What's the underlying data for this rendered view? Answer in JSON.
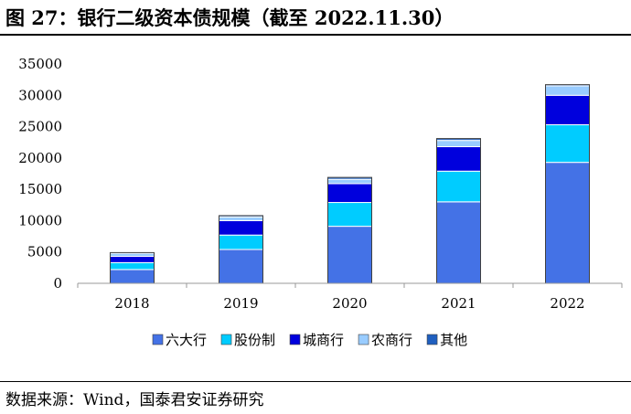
{
  "header": {
    "title": "图 27：银行二级资本债规模（截至 2022.11.30）"
  },
  "footer": {
    "source": "数据来源：Wind，国泰君安证券研究"
  },
  "chart_data": {
    "type": "bar",
    "stacked": true,
    "categories": [
      "2018",
      "2019",
      "2020",
      "2021",
      "2022"
    ],
    "series": [
      {
        "name": "六大行",
        "color": "#4472e6",
        "values": [
          2200,
          5400,
          9100,
          13000,
          19300
        ]
      },
      {
        "name": "股份制",
        "color": "#00ccff",
        "values": [
          1100,
          2300,
          3800,
          4900,
          6000
        ]
      },
      {
        "name": "城商行",
        "color": "#0000dd",
        "values": [
          1000,
          2300,
          3000,
          3900,
          4700
        ]
      },
      {
        "name": "农商行",
        "color": "#99ccff",
        "values": [
          500,
          600,
          700,
          1000,
          1500
        ]
      },
      {
        "name": "其他",
        "color": "#1f5fbf",
        "values": [
          100,
          200,
          300,
          300,
          200
        ]
      }
    ],
    "yticks": [
      0,
      5000,
      10000,
      15000,
      20000,
      25000,
      30000,
      35000
    ],
    "ylim": [
      0,
      35000
    ],
    "legend_position": "bottom"
  }
}
